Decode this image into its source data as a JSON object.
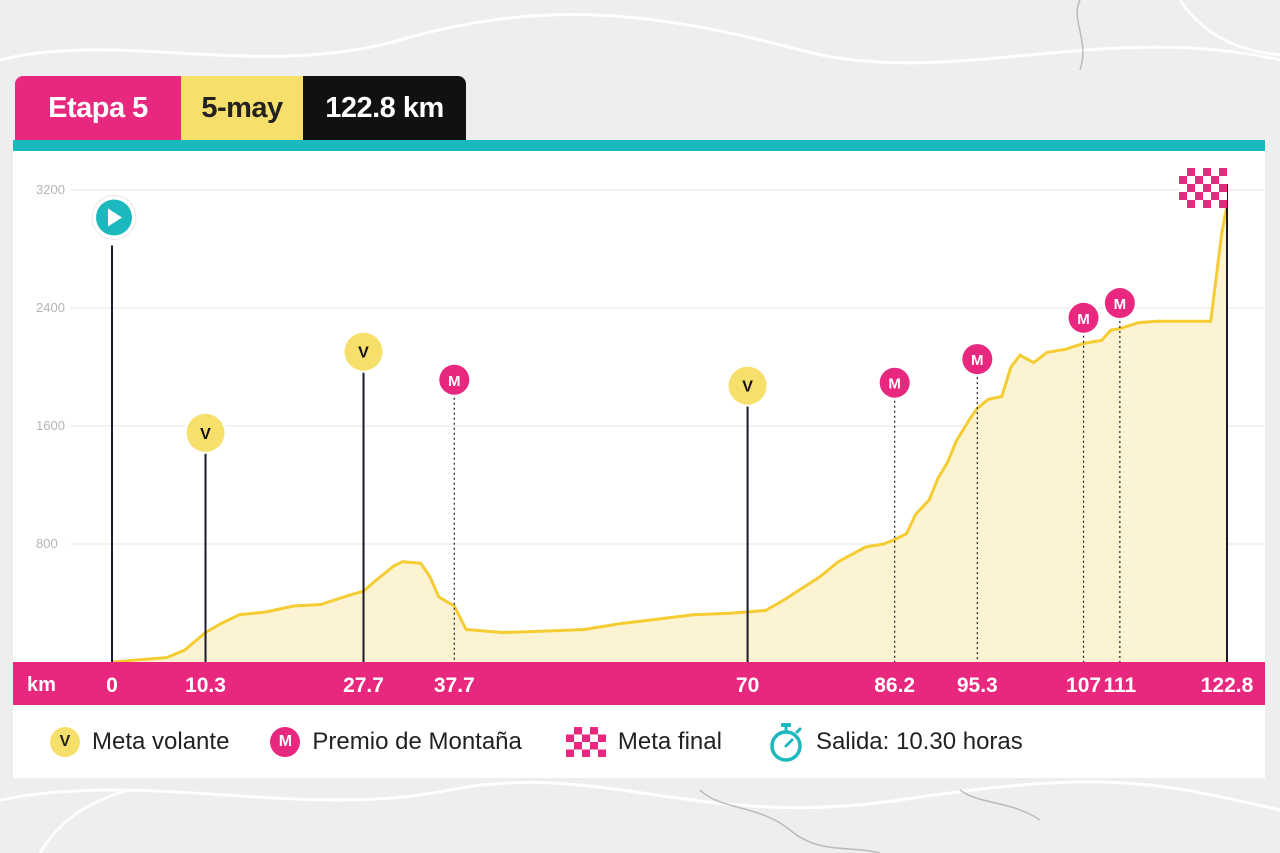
{
  "stage": {
    "label": "Etapa 5",
    "date": "5-may",
    "distance": "122.8 km"
  },
  "colors": {
    "pink": "#e8277f",
    "yellow": "#f7df6b",
    "teal": "#1bb8bd",
    "dark": "#111111",
    "profile_fill": "#fcf3d2",
    "profile_line": "#f5cc32"
  },
  "chart_data": {
    "type": "area",
    "xlabel": "km",
    "y_ticks": [
      "3200",
      "2400",
      "1600",
      "800"
    ],
    "ylim": [
      0,
      3400
    ],
    "xlim": [
      0,
      122.8
    ],
    "x_tick_labels": [
      "0",
      "10.3",
      "27.7",
      "37.7",
      "70",
      "86.2",
      "95.3",
      "107",
      "111",
      "122.8"
    ],
    "x_tick_values": [
      0,
      10.3,
      27.7,
      37.7,
      70,
      86.2,
      95.3,
      107,
      111,
      122.8
    ],
    "profile": [
      [
        0,
        0
      ],
      [
        6,
        30
      ],
      [
        8,
        80
      ],
      [
        10.3,
        200
      ],
      [
        12,
        260
      ],
      [
        14,
        320
      ],
      [
        17,
        340
      ],
      [
        20,
        380
      ],
      [
        23,
        390
      ],
      [
        26,
        450
      ],
      [
        27.7,
        480
      ],
      [
        29,
        550
      ],
      [
        31,
        650
      ],
      [
        32,
        680
      ],
      [
        34,
        670
      ],
      [
        35,
        580
      ],
      [
        36,
        440
      ],
      [
        37.7,
        380
      ],
      [
        39,
        220
      ],
      [
        43,
        200
      ],
      [
        48,
        210
      ],
      [
        52,
        220
      ],
      [
        56,
        260
      ],
      [
        60,
        290
      ],
      [
        64,
        320
      ],
      [
        68,
        330
      ],
      [
        70,
        340
      ],
      [
        72,
        350
      ],
      [
        74,
        420
      ],
      [
        76,
        500
      ],
      [
        78,
        580
      ],
      [
        80,
        680
      ],
      [
        83,
        780
      ],
      [
        85,
        800
      ],
      [
        86.2,
        830
      ],
      [
        87.5,
        870
      ],
      [
        88.5,
        1000
      ],
      [
        90,
        1100
      ],
      [
        91,
        1250
      ],
      [
        92,
        1350
      ],
      [
        93,
        1500
      ],
      [
        94.5,
        1650
      ],
      [
        95.3,
        1720
      ],
      [
        96.5,
        1780
      ],
      [
        98,
        1800
      ],
      [
        99,
        2000
      ],
      [
        100,
        2080
      ],
      [
        101.5,
        2030
      ],
      [
        103,
        2100
      ],
      [
        105,
        2120
      ],
      [
        107,
        2160
      ],
      [
        109,
        2180
      ],
      [
        110,
        2250
      ],
      [
        111,
        2260
      ],
      [
        113,
        2300
      ],
      [
        115,
        2310
      ],
      [
        118,
        2310
      ],
      [
        121,
        2310
      ],
      [
        122.2,
        2900
      ],
      [
        122.8,
        3100
      ]
    ],
    "markers": [
      {
        "type": "start",
        "km": 0,
        "top": 3000
      },
      {
        "type": "V",
        "km": 10.3,
        "top": 1540
      },
      {
        "type": "V",
        "km": 27.7,
        "top": 2090
      },
      {
        "type": "M",
        "km": 37.7,
        "top": 1900
      },
      {
        "type": "V",
        "km": 70,
        "top": 1860
      },
      {
        "type": "M",
        "km": 86.2,
        "top": 1880
      },
      {
        "type": "M",
        "km": 95.3,
        "top": 2040
      },
      {
        "type": "M",
        "km": 107,
        "top": 2320
      },
      {
        "type": "M",
        "km": 111,
        "top": 2420
      },
      {
        "type": "finish",
        "km": 122.8,
        "top": 3200
      }
    ]
  },
  "legend": {
    "meta_volante": "Meta volante",
    "premio_montana": "Premio de Montaña",
    "meta_final": "Meta final",
    "salida": "Salida: 10.30 horas",
    "badge_v": "V",
    "badge_m": "M"
  }
}
